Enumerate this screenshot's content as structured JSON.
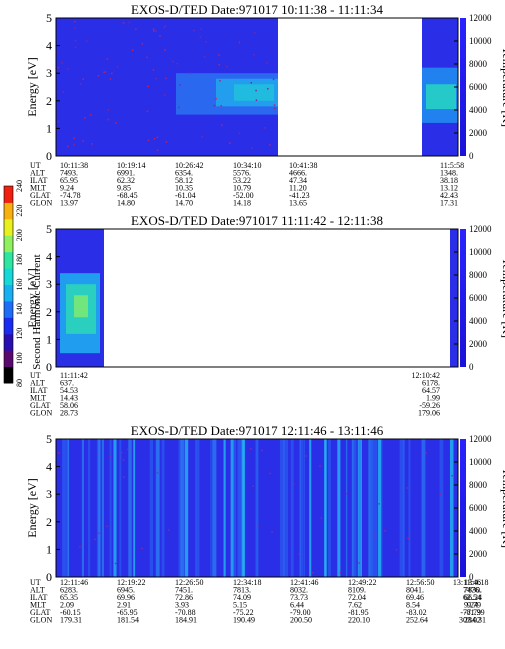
{
  "colorbar": {
    "label": "Second Harmonic Current",
    "ticks": [
      "80",
      "100",
      "120",
      "140",
      "160",
      "180",
      "200",
      "220",
      "240"
    ],
    "colors": [
      "#000000",
      "#5a0a6e",
      "#2a0fb0",
      "#1a2cf0",
      "#1f6cf7",
      "#19b0f2",
      "#16d8d8",
      "#2fe6a0",
      "#8ff060",
      "#e8f020",
      "#f8b010",
      "#f02010"
    ]
  },
  "chart_data": [
    {
      "type": "heatmap",
      "title": "EXOS-D/TED   Date:971017  10:11:38 - 11:11:34",
      "ylabel": "Energy [eV]",
      "ylabel_right": "Temperature [K]",
      "ylim": [
        0,
        5
      ],
      "ylim_right": [
        0,
        12000
      ],
      "yticks": [
        "0",
        "1",
        "2",
        "3",
        "4",
        "5"
      ],
      "yticks_right": [
        "0",
        "2000",
        "4000",
        "6000",
        "8000",
        "10000",
        "12000"
      ],
      "row_labels": [
        "UT",
        "ALT",
        "ILAT",
        "MLT",
        "GLAT",
        "GLON"
      ],
      "columns": [
        [
          "10:11:38",
          "7493.",
          "65.95",
          "9.24",
          "-74.78",
          "13.97"
        ],
        [
          "10:19:14",
          "6991.",
          "62.32",
          "9.85",
          "-68.45",
          "14.80"
        ],
        [
          "10:26:42",
          "6354.",
          "58.12",
          "10.35",
          "-61.04",
          "14.70"
        ],
        [
          "10:34:10",
          "5576.",
          "53.22",
          "10.79",
          "-52.00",
          "14.18"
        ],
        [
          "10:41:38",
          "4666.",
          "47.34",
          "11.20",
          "-41.23",
          "13.65"
        ],
        [
          "11:5:58",
          "1348.",
          "38.18",
          "13.12",
          "42.43",
          "17.31"
        ]
      ]
    },
    {
      "type": "heatmap",
      "title": "EXOS-D/TED   Date:971017  11:11:42 - 12:11:38",
      "ylabel": "Energy [eV]",
      "ylabel_right": "Temperature [K]",
      "ylim": [
        0,
        5
      ],
      "ylim_right": [
        0,
        12000
      ],
      "yticks": [
        "0",
        "1",
        "2",
        "3",
        "4",
        "5"
      ],
      "yticks_right": [
        "0",
        "2000",
        "4000",
        "6000",
        "8000",
        "10000",
        "12000"
      ],
      "row_labels": [
        "UT",
        "ALT",
        "ILAT",
        "MLT",
        "GLAT",
        "GLON"
      ],
      "columns": [
        [
          "11:11:42",
          "637.",
          "54.53",
          "14.43",
          "58.06",
          "28.73"
        ],
        [
          "12:10:42",
          "6178.",
          "64.57",
          "1.99",
          "-59.26",
          "179.06"
        ]
      ]
    },
    {
      "type": "heatmap",
      "title": "EXOS-D/TED   Date:971017  12:11:46 - 13:11:46",
      "ylabel": "Energy [eV]",
      "ylabel_right": "Temperature [K]",
      "ylim": [
        0,
        5
      ],
      "ylim_right": [
        0,
        12000
      ],
      "yticks": [
        "0",
        "1",
        "2",
        "3",
        "4",
        "5"
      ],
      "yticks_right": [
        "0",
        "2000",
        "4000",
        "6000",
        "8000",
        "10000",
        "12000"
      ],
      "row_labels": [
        "UT",
        "ALT",
        "ILAT",
        "MLT",
        "GLAT",
        "GLON"
      ],
      "columns": [
        [
          "12:11:46",
          "6283.",
          "65.35",
          "2.09",
          "-60.15",
          "179.31"
        ],
        [
          "12:19:22",
          "6945.",
          "69.96",
          "2.91",
          "-65.95",
          "181.54"
        ],
        [
          "12:26:50",
          "7451.",
          "72.86",
          "3.93",
          "-70.88",
          "184.91"
        ],
        [
          "12:34:18",
          "7813.",
          "74.09",
          "5.15",
          "-75.22",
          "190.49"
        ],
        [
          "12:41:46",
          "8032.",
          "73.73",
          "6.44",
          "-79.00",
          "200.50"
        ],
        [
          "12:49:22",
          "8109.",
          "72.04",
          "7.62",
          "-81.95",
          "220.10"
        ],
        [
          "12:56:50",
          "8041.",
          "69.46",
          "8.54",
          "-83.02",
          "252.64"
        ],
        [
          "13:4:18",
          "7830.",
          "66.24",
          "9.24",
          "-81.39",
          "284.31"
        ],
        [
          "13:11:46",
          "7476.",
          "62.54",
          "9.79",
          "-77.79",
          "303.02"
        ]
      ]
    }
  ]
}
